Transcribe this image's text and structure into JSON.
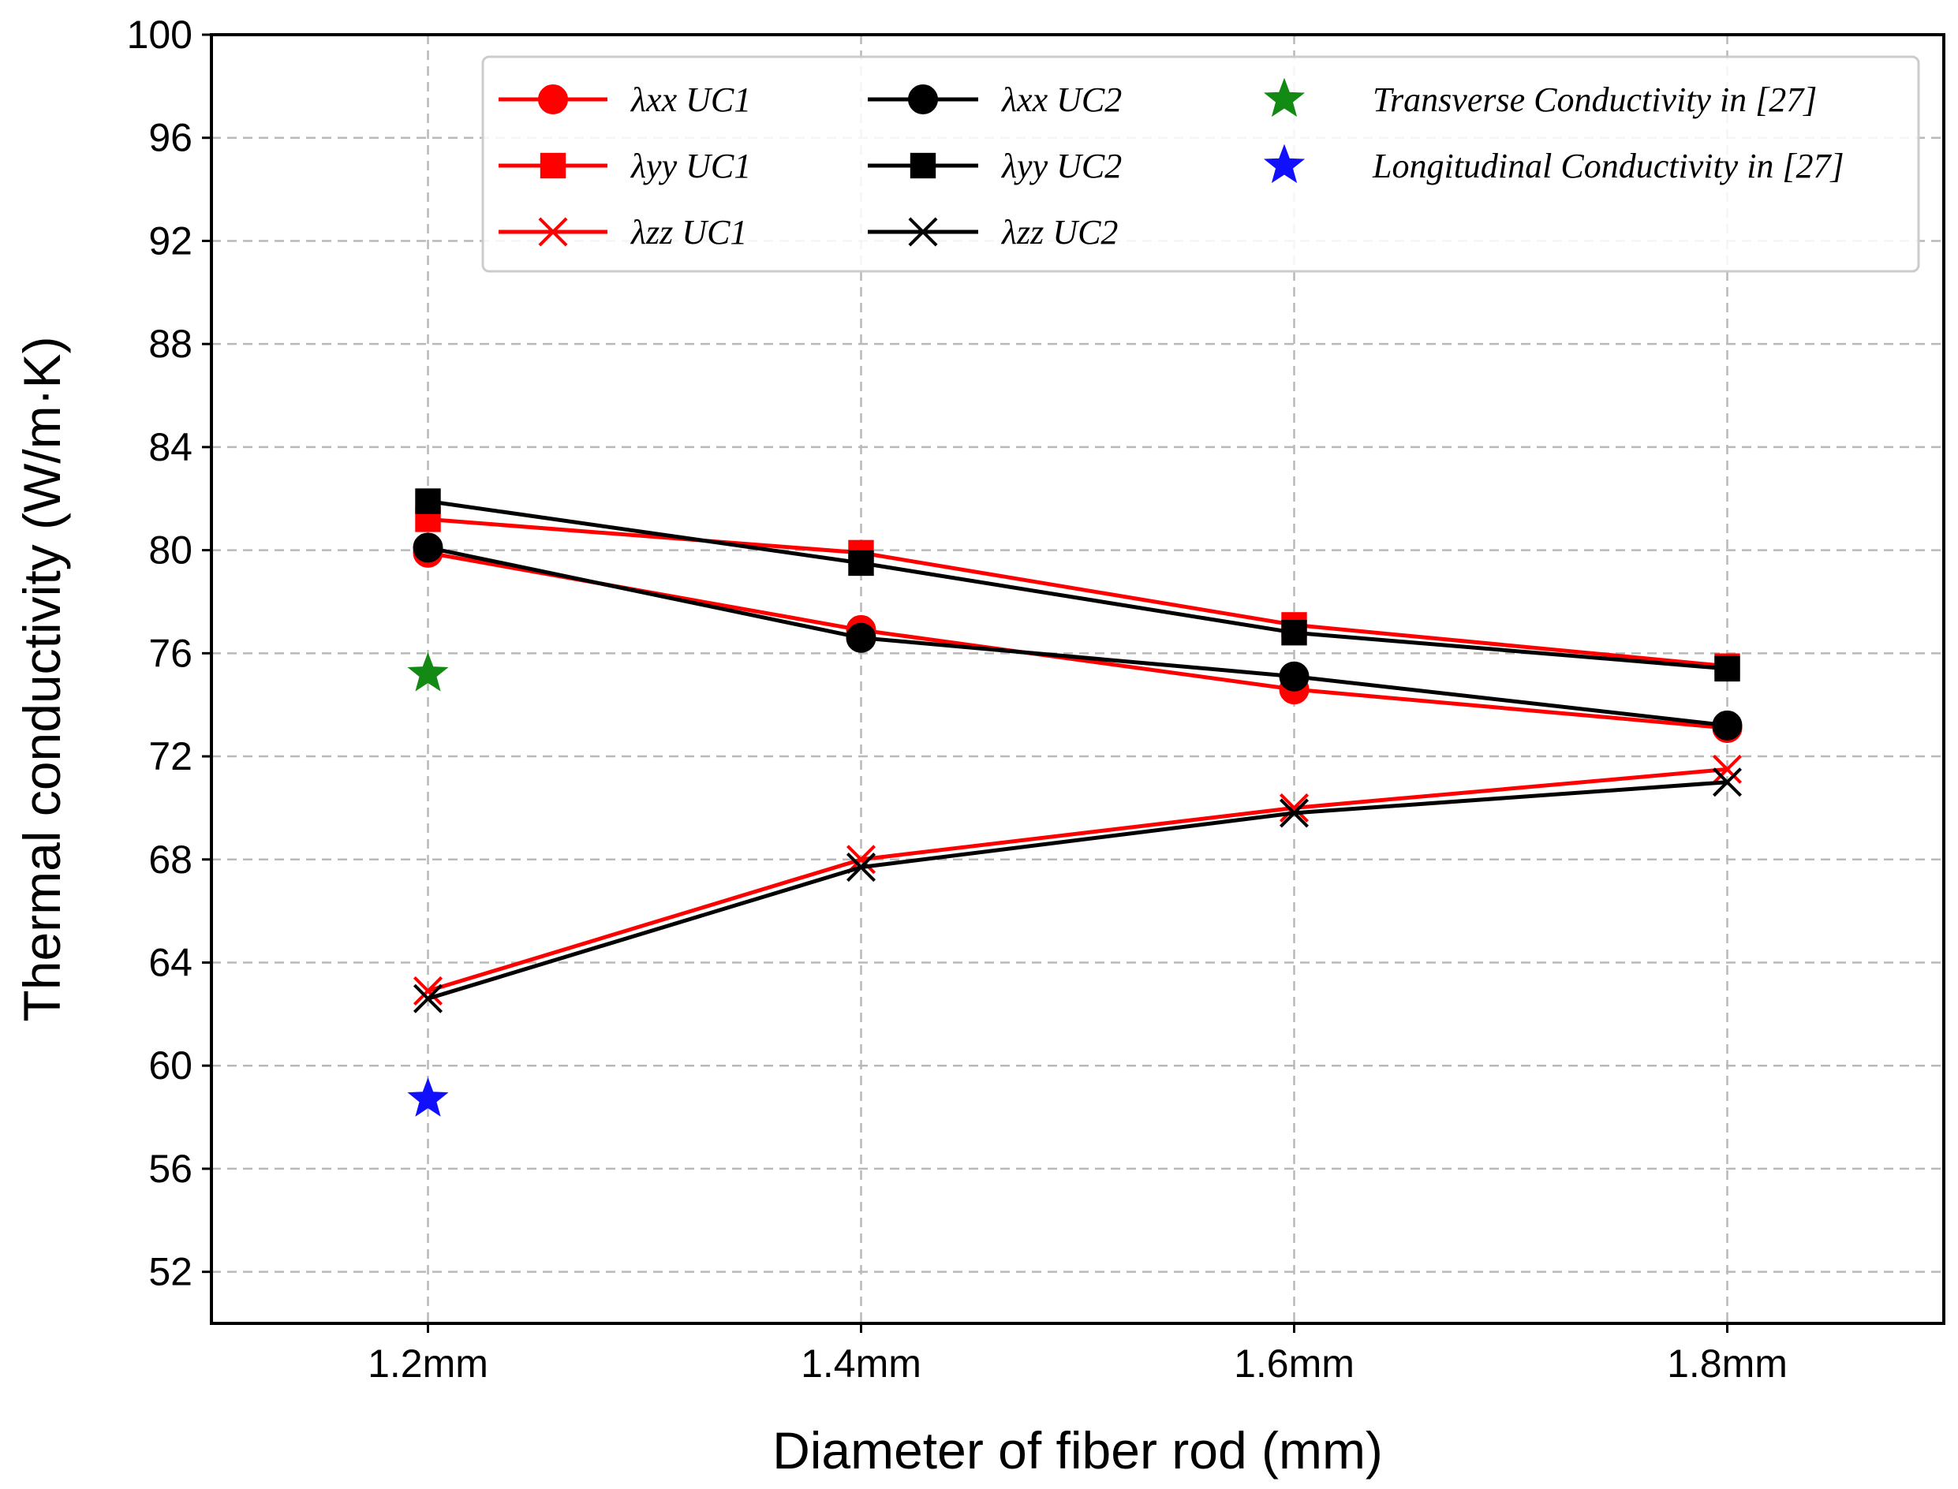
{
  "chart_data": {
    "type": "line",
    "title": "",
    "xlabel": "Diameter of fiber rod (mm)",
    "ylabel": "Thermal conductivity (W/m·K)",
    "categories": [
      "1.2mm",
      "1.4mm",
      "1.6mm",
      "1.8mm"
    ],
    "xlim": [
      -0.5,
      3.5
    ],
    "ylim": [
      50,
      100
    ],
    "yticks": [
      52,
      56,
      60,
      64,
      68,
      72,
      76,
      80,
      84,
      88,
      92,
      96,
      100
    ],
    "grid": true,
    "legend_position": "top-right",
    "series": [
      {
        "name": "λxx UC1",
        "color": "#ff0000",
        "marker": "circle",
        "values": [
          79.9,
          76.9,
          74.6,
          73.1
        ]
      },
      {
        "name": "λyy UC1",
        "color": "#ff0000",
        "marker": "square",
        "values": [
          81.2,
          79.9,
          77.1,
          75.5
        ]
      },
      {
        "name": "λzz UC1",
        "color": "#ff0000",
        "marker": "x",
        "values": [
          62.9,
          68.0,
          70.0,
          71.5
        ]
      },
      {
        "name": "λxx UC2",
        "color": "#000000",
        "marker": "circle",
        "values": [
          80.1,
          76.6,
          75.1,
          73.2
        ]
      },
      {
        "name": "λyy UC2",
        "color": "#000000",
        "marker": "square",
        "values": [
          81.9,
          79.5,
          76.8,
          75.4
        ]
      },
      {
        "name": "λzz UC2",
        "color": "#000000",
        "marker": "x",
        "values": [
          62.6,
          67.7,
          69.8,
          71.0
        ]
      }
    ],
    "references": [
      {
        "name": "Transverse Conductivity in [27]",
        "color": "#138a13",
        "marker": "star",
        "x": "1.2mm",
        "value": 75.2
      },
      {
        "name": "Longitudinal Conductivity in [27]",
        "color": "#1010ff",
        "marker": "star",
        "x": "1.2mm",
        "value": 58.7
      }
    ]
  }
}
